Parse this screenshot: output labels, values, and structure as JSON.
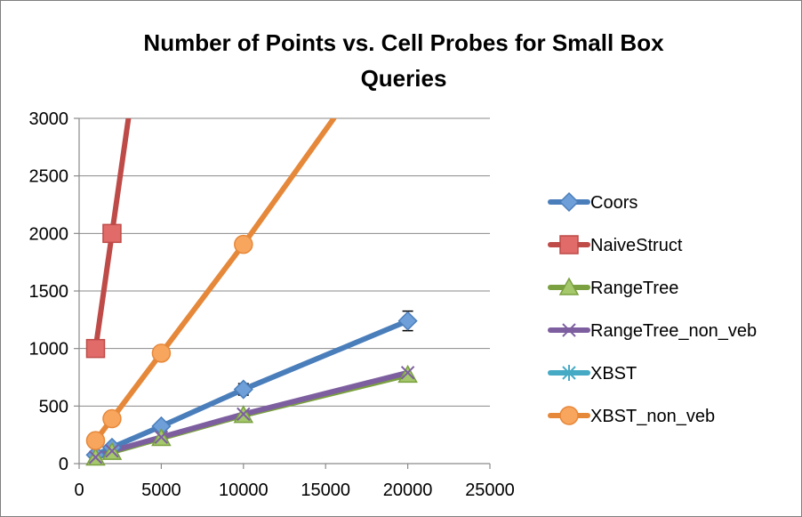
{
  "chart_data": {
    "type": "line",
    "title_lines": [
      "Number of Points vs. Cell Probes for Small Box",
      "Queries"
    ],
    "xlabel": "",
    "ylabel": "",
    "xlim": [
      0,
      25000
    ],
    "ylim": [
      0,
      3000
    ],
    "x_ticks": [
      "0",
      "5000",
      "10000",
      "15000",
      "20000",
      "25000"
    ],
    "y_ticks": [
      "0",
      "500",
      "1000",
      "1500",
      "2000",
      "2500",
      "3000"
    ],
    "grid": "horizontal",
    "legend_position": "right",
    "series": [
      {
        "name": "Coors",
        "color": "#4a7ebb",
        "marker": "diamond",
        "marker_fill": "#6f9fd8",
        "x": [
          1000,
          2000,
          5000,
          10000,
          20000
        ],
        "y": [
          75,
          140,
          325,
          645,
          1240
        ],
        "error": [
          null,
          null,
          null,
          50,
          85
        ]
      },
      {
        "name": "NaiveStruct",
        "color": "#be4b48",
        "marker": "square",
        "marker_fill": "#e06b68",
        "x": [
          1000,
          2000,
          3000
        ],
        "y": [
          1000,
          2000,
          3000
        ],
        "markers_on": [
          true,
          true,
          false
        ]
      },
      {
        "name": "RangeTree",
        "color": "#7aa03f",
        "marker": "triangle",
        "marker_fill": "#a4c86a",
        "x": [
          1000,
          2000,
          5000,
          10000,
          20000
        ],
        "y": [
          50,
          100,
          220,
          420,
          770
        ]
      },
      {
        "name": "RangeTree_non_veb",
        "color": "#7d5fa0",
        "marker": "x",
        "marker_fill": "#7d5fa0",
        "x": [
          1000,
          2000,
          5000,
          10000,
          20000
        ],
        "y": [
          55,
          110,
          230,
          430,
          790
        ]
      },
      {
        "name": "XBST",
        "color": "#46aac5",
        "marker": "star",
        "marker_fill": "#46aac5",
        "x": [],
        "y": []
      },
      {
        "name": "XBST_non_veb",
        "color": "#e6883a",
        "marker": "circle",
        "marker_fill": "#f8a55e",
        "x": [
          1000,
          2000,
          5000,
          10000,
          15500
        ],
        "y": [
          200,
          390,
          960,
          1905,
          3000
        ],
        "markers_on": [
          true,
          true,
          true,
          true,
          false
        ]
      }
    ]
  }
}
